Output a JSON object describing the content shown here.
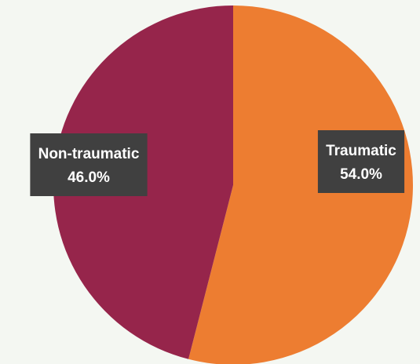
{
  "chart_data": {
    "type": "pie",
    "categories": [
      "Traumatic",
      "Non-traumatic"
    ],
    "values": [
      54,
      46
    ],
    "value_labels": [
      "54.0%",
      "46.0%"
    ],
    "colors": [
      "#ed7d31",
      "#96254b"
    ]
  }
}
